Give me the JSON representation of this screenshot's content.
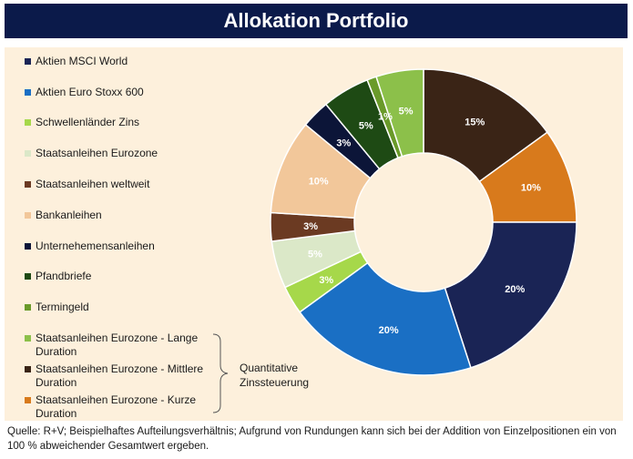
{
  "title": "Allokation Portfolio",
  "footer": "Quelle: R+V; Beispielhaftes Aufteilungsverhältnis; Aufgrund von Rundungen kann sich bei der Addition von Einzelpositionen ein von 100 % abweichender Gesamtwert ergeben.",
  "bracket_label": "Quantitative Zinssteuerung",
  "legend": [
    {
      "label": "Aktien MSCI World",
      "color": "#1a2455"
    },
    {
      "label": "Aktien Euro Stoxx 600",
      "color": "#1a6fc4"
    },
    {
      "label": "Schwellenländer Zins",
      "color": "#a6d84a"
    },
    {
      "label": "Staatsanleihen Eurozone",
      "color": "#dbe8c8"
    },
    {
      "label": "Staatsanleihen weltweit",
      "color": "#6b3a22"
    },
    {
      "label": "Bankanleihen",
      "color": "#f2c79a"
    },
    {
      "label": "Unternehemensanleihen",
      "color": "#0c1538"
    },
    {
      "label": "Pfandbriefe",
      "color": "#1e4a14"
    },
    {
      "label": "Termingeld",
      "color": "#6a9a2a"
    },
    {
      "label": "Staatsanleihen Eurozone - Lange Duration",
      "color": "#8cc04a"
    },
    {
      "label": "Staatsanleihen Eurozone - Mittlere Duration",
      "color": "#3a2416"
    },
    {
      "label": "Staatsanleihen Eurozone - Kurze Duration",
      "color": "#d87a1c"
    }
  ],
  "chart_data": {
    "type": "pie",
    "donut": true,
    "start": "12 o'clock",
    "direction": "clockwise",
    "slices": [
      {
        "name": "Staatsanleihen Eurozone - Mittlere Duration",
        "value": 15,
        "label": "15%",
        "color": "#3a2416"
      },
      {
        "name": "Staatsanleihen Eurozone - Kurze Duration",
        "value": 10,
        "label": "10%",
        "color": "#d87a1c"
      },
      {
        "name": "Aktien MSCI World",
        "value": 20,
        "label": "20%",
        "color": "#1a2455"
      },
      {
        "name": "Aktien Euro Stoxx 600",
        "value": 20,
        "label": "20%",
        "color": "#1a6fc4"
      },
      {
        "name": "Schwellenländer Zins",
        "value": 3,
        "label": "3%",
        "color": "#a6d84a"
      },
      {
        "name": "Staatsanleihen Eurozone",
        "value": 5,
        "label": "5%",
        "color": "#dbe8c8"
      },
      {
        "name": "Staatsanleihen weltweit",
        "value": 3,
        "label": "3%",
        "color": "#6b3a22"
      },
      {
        "name": "Bankanleihen",
        "value": 10,
        "label": "10%",
        "color": "#f2c79a"
      },
      {
        "name": "Unternehemensanleihen",
        "value": 3,
        "label": "3%",
        "color": "#0c1538"
      },
      {
        "name": "Pfandbriefe",
        "value": 5,
        "label": "5%",
        "color": "#1e4a14"
      },
      {
        "name": "Termingeld",
        "value": 1,
        "label": "1%",
        "color": "#6a9a2a"
      },
      {
        "name": "Staatsanleihen Eurozone - Lange Duration",
        "value": 5,
        "label": "5%",
        "color": "#8cc04a"
      }
    ]
  }
}
